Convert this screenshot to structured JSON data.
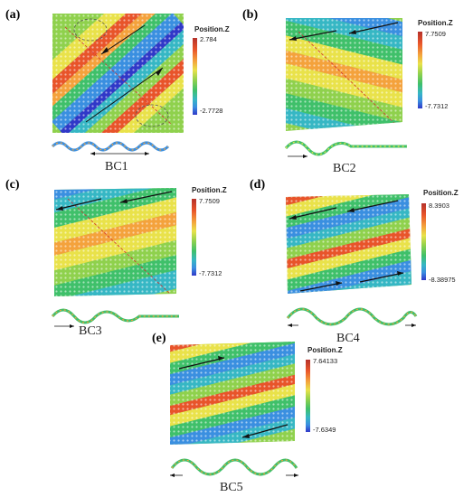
{
  "figure": {
    "panels": [
      {
        "id": "a",
        "label": "(a)",
        "bc": "BC1",
        "scale_title": "Position.Z",
        "max": "2.784",
        "min": "-2.7728"
      },
      {
        "id": "b",
        "label": "(b)",
        "bc": "BC2",
        "scale_title": "Position.Z",
        "max": "7.7509",
        "min": "-7.7312"
      },
      {
        "id": "c",
        "label": "(c)",
        "bc": "BC3",
        "scale_title": "Position.Z",
        "max": "7.7509",
        "min": "-7.7312"
      },
      {
        "id": "d",
        "label": "(d)",
        "bc": "BC4",
        "scale_title": "Position.Z",
        "max": "8.3903",
        "min": "-8.38975"
      },
      {
        "id": "e",
        "label": "(e)",
        "bc": "BC5",
        "scale_title": "Position.Z",
        "max": "7.64133",
        "min": "-7.6349"
      }
    ]
  },
  "colors": {
    "scale": [
      "#b5322b",
      "#e8542a",
      "#f4a23c",
      "#e9e24a",
      "#8fd14d",
      "#3fc06a",
      "#36b7c4",
      "#3a8fe0",
      "#3038c8"
    ]
  }
}
